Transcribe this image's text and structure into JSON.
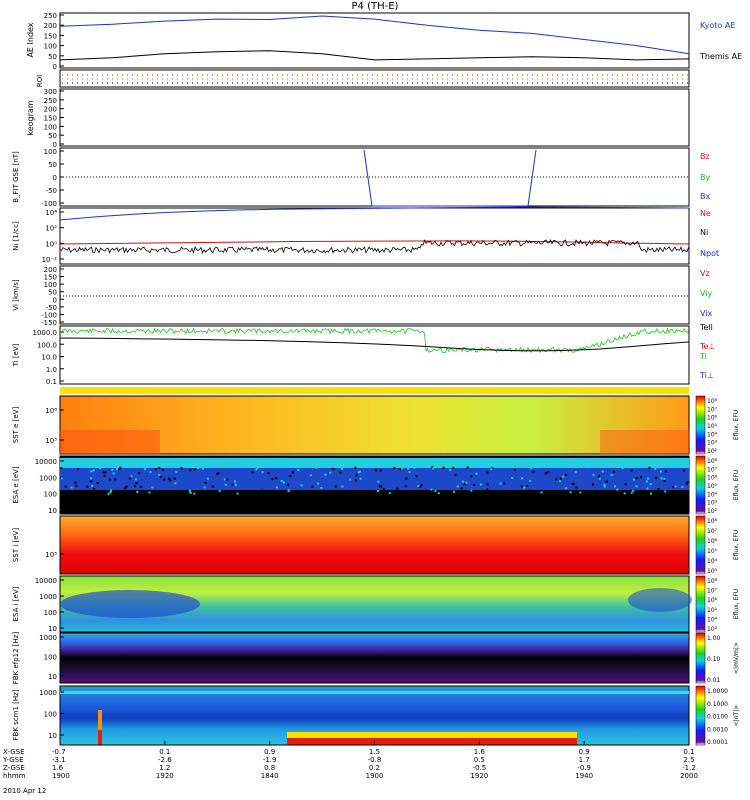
{
  "title": "P4 (TH-E)",
  "colors": {
    "kyoto": "#1f2fd0",
    "themis": "#000000",
    "bz": "#d01010",
    "by": "#22b422",
    "bx": "#1f2fd0",
    "ne": "#d01010",
    "ni": "#000000",
    "npot": "#1f2fd0",
    "te": "#d01010",
    "ti_green": "#22c022",
    "ti_perp": "#1f2fd0"
  },
  "chart_data": [
    {
      "type": "line",
      "panel": "ae",
      "ylabel": "AE Index",
      "yticks": [
        "250",
        "200",
        "150",
        "100",
        "50",
        "0"
      ],
      "ylim": [
        0,
        250
      ],
      "x": [
        "1900",
        "1905",
        "1910",
        "1915",
        "1920",
        "1925",
        "1930",
        "1935",
        "1940",
        "1945",
        "1950",
        "1955",
        "2000"
      ],
      "series": [
        {
          "name": "Kyoto AE",
          "values": [
            195,
            205,
            220,
            230,
            228,
            245,
            230,
            200,
            175,
            160,
            130,
            100,
            60
          ]
        },
        {
          "name": "Themis AE",
          "values": [
            30,
            40,
            60,
            70,
            75,
            60,
            30,
            35,
            40,
            45,
            40,
            30,
            35
          ]
        }
      ]
    },
    {
      "type": "line",
      "panel": "roi",
      "ylabel": "ROI"
    },
    {
      "type": "heatmap",
      "panel": "keogram",
      "ylabel": "keogram",
      "yticks": [
        "300",
        "250",
        "200",
        "150",
        "100",
        "50",
        "0"
      ],
      "ylim": [
        0,
        300
      ]
    },
    {
      "type": "line",
      "panel": "bfit",
      "ylabel": "B_FIT GSE [nT]",
      "yticks": [
        "100",
        "50",
        "0",
        "-50",
        "-100"
      ],
      "ylim": [
        -100,
        100
      ],
      "series": [
        {
          "name": "Bz"
        },
        {
          "name": "By"
        },
        {
          "name": "Bx"
        }
      ]
    },
    {
      "type": "line",
      "panel": "density",
      "ylabel": "Ni [1/cc]",
      "yticks": [
        "10⁴",
        "10²",
        "10⁰",
        "10⁻²"
      ],
      "log": true,
      "series": [
        {
          "name": "Ne"
        },
        {
          "name": "Ni"
        },
        {
          "name": "Npot"
        }
      ]
    },
    {
      "type": "line",
      "panel": "velocity",
      "ylabel": "Vi [km/s]",
      "yticks": [
        "200",
        "150",
        "100",
        "50",
        "0",
        "-50",
        "-100",
        "-150"
      ],
      "ylim": [
        -150,
        200
      ],
      "series": [
        {
          "name": "Vix"
        },
        {
          "name": "Viy"
        },
        {
          "name": "Vz"
        }
      ]
    },
    {
      "type": "line",
      "panel": "temperature",
      "ylabel": "Ti [eV]",
      "yticks": [
        "1000.0",
        "100.0",
        "10.0",
        "1.0",
        "0.1"
      ],
      "log": true,
      "series": [
        {
          "name": "Tell"
        },
        {
          "name": "Te⊥"
        },
        {
          "name": "Ti"
        },
        {
          "name": "Ti⊥"
        }
      ]
    },
    {
      "type": "heatmap",
      "panel": "sst_e",
      "ylabel": "SST e [eV]",
      "yticks": [
        "10⁶",
        "10⁵"
      ],
      "colorbar": "Eflux, EFU",
      "cbticks": [
        "10⁸",
        "10⁷",
        "10⁶",
        "10⁵",
        "10⁴",
        "10³",
        "10²"
      ]
    },
    {
      "type": "heatmap",
      "panel": "esa_e",
      "ylabel": "ESA e [eV]",
      "yticks": [
        "10000",
        "1000",
        "100",
        "10"
      ],
      "colorbar": "Eflux, EFU",
      "cbticks": [
        "10⁸",
        "10⁷",
        "10⁶",
        "10⁵",
        "10⁴",
        "10³",
        "10²"
      ]
    },
    {
      "type": "heatmap",
      "panel": "sst_i",
      "ylabel": "SST i [eV]",
      "yticks": [
        "10⁵"
      ],
      "colorbar": "Eflux, EFU",
      "cbticks": [
        "10⁸",
        "10⁷",
        "10⁶",
        "10⁵",
        "10⁴",
        "10³"
      ]
    },
    {
      "type": "heatmap",
      "panel": "esa_i",
      "ylabel": "ESA i [eV]",
      "yticks": [
        "10000",
        "1000",
        "100",
        "10"
      ],
      "colorbar": "Eflux, EFU",
      "cbticks": [
        "10⁸",
        "10⁷",
        "10⁶",
        "10⁵",
        "10⁴",
        "10³"
      ]
    },
    {
      "type": "heatmap",
      "panel": "fbk_e",
      "ylabel": "FBK efp12 [Hz]",
      "yticks": [
        "1000",
        "100",
        "10"
      ],
      "colorbar": "<|mV/m|>",
      "cbticks": [
        "1.00",
        "0.10",
        "0.01"
      ]
    },
    {
      "type": "heatmap",
      "panel": "fbk_b",
      "ylabel": "FBK scm1 [Hz]",
      "yticks": [
        "1000",
        "100",
        "10"
      ],
      "colorbar": "<|nT|>",
      "cbticks": [
        "1.0000",
        "0.1000",
        "0.0100",
        "0.0010",
        "0.0001"
      ]
    }
  ],
  "xaxis": {
    "row_labels": [
      "X-GSE",
      "Y-GSE",
      "Z-GSE",
      "hhmm"
    ],
    "date": "2010 Apr 12",
    "ticks": [
      {
        "x": "-0.7",
        "y": "-3.1",
        "z": "1.6",
        "t": "1900"
      },
      {
        "x": "0.1",
        "y": "-2.6",
        "z": "1.2",
        "t": "1920"
      },
      {
        "x": "0.9",
        "y": "-1.9",
        "z": "0.8",
        "t": "1840"
      },
      {
        "x": "1.5",
        "y": "-0.8",
        "z": "0.2",
        "t": "1900"
      },
      {
        "x": "1.6",
        "y": "0.5",
        "z": "-0.5",
        "t": "1920"
      },
      {
        "x": "0.9",
        "y": "1.7",
        "z": "-0.9",
        "t": "1940"
      },
      {
        "x": "0.1",
        "y": "2.5",
        "z": "-1.2",
        "t": "2000"
      }
    ]
  }
}
